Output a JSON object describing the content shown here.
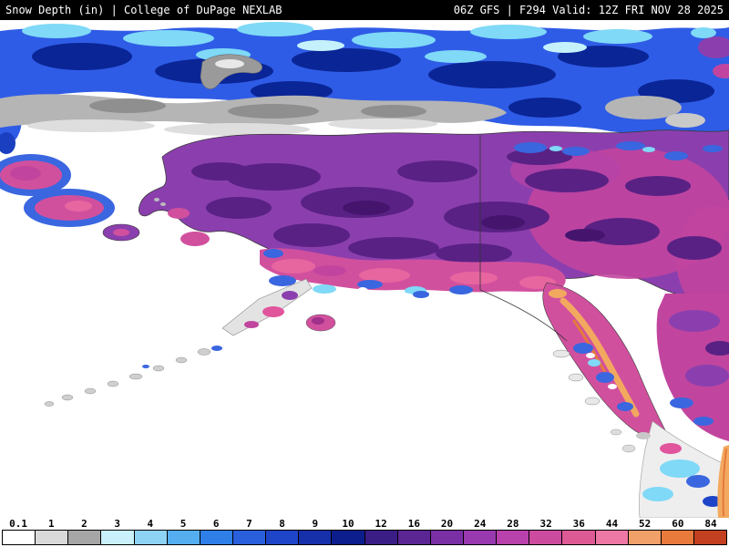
{
  "header": {
    "left": "Snow Depth (in) | College of DuPage NEXLAB",
    "right": "06Z GFS | F294 Valid: 12Z FRI NOV 28 2025"
  },
  "map": {
    "parameter": "Snow Depth (in)",
    "region": "Alaska"
  },
  "colorbar": {
    "values": [
      "0.1",
      "1",
      "2",
      "3",
      "4",
      "5",
      "6",
      "7",
      "8",
      "9",
      "10",
      "12",
      "16",
      "20",
      "24",
      "28",
      "32",
      "36",
      "44",
      "52",
      "60",
      "84"
    ],
    "colors": [
      "#ffffff",
      "#d9d9d9",
      "#a6a6a6",
      "#c9f0fb",
      "#8fd3f4",
      "#55aef0",
      "#2f7fe8",
      "#2a5fdc",
      "#1e45c8",
      "#1530aa",
      "#0b1e8c",
      "#3a1d85",
      "#5b2593",
      "#7a2fa5",
      "#9939b0",
      "#b841ab",
      "#cc4b9f",
      "#de5a95",
      "#ee78a5",
      "#f2a06a",
      "#e87a3c",
      "#c2401f"
    ]
  }
}
